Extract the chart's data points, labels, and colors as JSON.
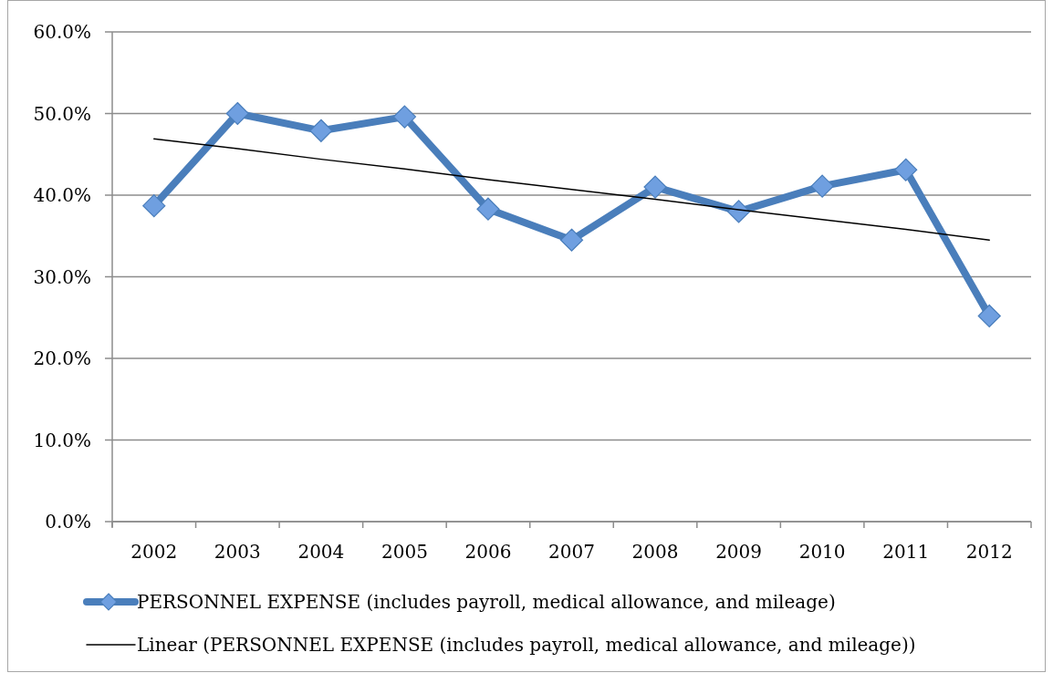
{
  "chart_data": {
    "type": "line",
    "categories": [
      "2002",
      "2003",
      "2004",
      "2005",
      "2006",
      "2007",
      "2008",
      "2009",
      "2010",
      "2011",
      "2012"
    ],
    "series": [
      {
        "name": "PERSONNEL EXPENSE (includes payroll, medical allowance, and mileage)",
        "color": "#4a7ebb",
        "values": [
          38.7,
          50.0,
          47.9,
          49.6,
          38.3,
          34.5,
          41.0,
          38.0,
          41.1,
          43.1,
          25.2
        ]
      },
      {
        "name": "Linear (PERSONNEL EXPENSE (includes payroll, medical allowance, and mileage))",
        "type": "line",
        "color": "#000000",
        "marker": "none",
        "values": [
          46.9,
          45.7,
          44.4,
          43.2,
          41.9,
          40.7,
          39.5,
          38.2,
          37.0,
          35.8,
          34.5
        ]
      }
    ],
    "ylim": [
      0,
      60
    ],
    "yticks": [
      {
        "value": 0,
        "label": "0.0%"
      },
      {
        "value": 10,
        "label": "10.0%"
      },
      {
        "value": 20,
        "label": "20.0%"
      },
      {
        "value": 30,
        "label": "30.0%"
      },
      {
        "value": 40,
        "label": "40.0%"
      },
      {
        "value": 50,
        "label": "50.0%"
      },
      {
        "value": 60,
        "label": "60.0%"
      }
    ],
    "grid": "y",
    "legend": "bottom",
    "marker": "diamond"
  }
}
